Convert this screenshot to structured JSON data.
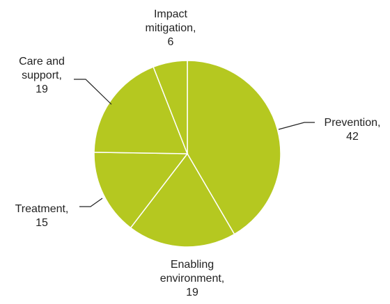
{
  "chart_data": {
    "type": "pie",
    "slice_color": "#b5c820",
    "start_angle_deg": 0,
    "direction": "clockwise",
    "slices": [
      {
        "label": [
          "Prevention,",
          "42"
        ],
        "value": 42
      },
      {
        "label": [
          "Enabling",
          "environment,",
          "19"
        ],
        "value": 19
      },
      {
        "label": [
          "Treatment,",
          "15"
        ],
        "value": 15
      },
      {
        "label": [
          "Care and",
          "support,",
          "19"
        ],
        "value": 19
      },
      {
        "label": [
          "Impact",
          "mitigation,",
          "6"
        ],
        "value": 6
      }
    ]
  }
}
